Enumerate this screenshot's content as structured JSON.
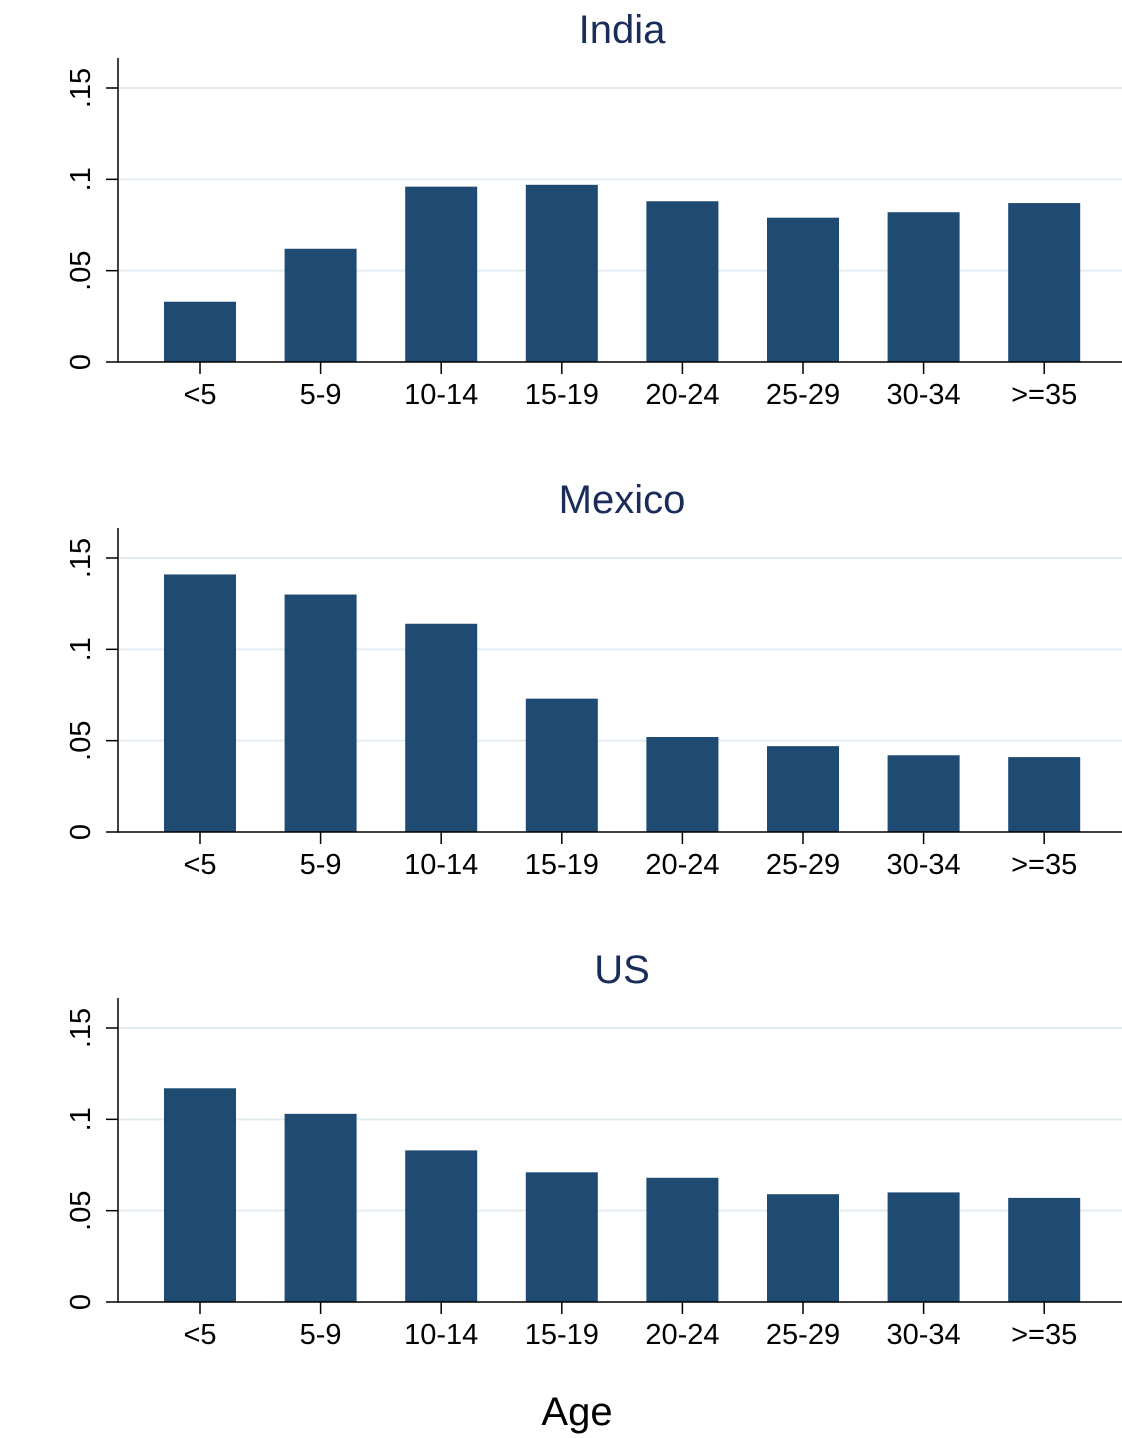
{
  "figure": {
    "xlabel": "Age"
  },
  "colors": {
    "bar": "#1f4a72",
    "title": "#1a2d5a",
    "axis": "#000000",
    "grid": "#e3ecf0",
    "background": "#ffffff"
  },
  "chart_data": [
    {
      "type": "bar",
      "title": "India",
      "categories": [
        "<5",
        "5-9",
        "10-14",
        "15-19",
        "20-24",
        "25-29",
        "30-34",
        ">=35"
      ],
      "values": [
        0.033,
        0.062,
        0.096,
        0.097,
        0.088,
        0.079,
        0.082,
        0.087
      ],
      "ylim": [
        0,
        0.165
      ],
      "yticks": [
        0,
        0.05,
        0.1,
        0.15
      ],
      "ytick_labels": [
        "0",
        ".05",
        ".1",
        ".15"
      ],
      "xlabel": "",
      "ylabel": "",
      "grid": true
    },
    {
      "type": "bar",
      "title": "Mexico",
      "categories": [
        "<5",
        "5-9",
        "10-14",
        "15-19",
        "20-24",
        "25-29",
        "30-34",
        ">=35"
      ],
      "values": [
        0.141,
        0.13,
        0.114,
        0.073,
        0.052,
        0.047,
        0.042,
        0.041
      ],
      "ylim": [
        0,
        0.165
      ],
      "yticks": [
        0,
        0.05,
        0.1,
        0.15
      ],
      "ytick_labels": [
        "0",
        ".05",
        ".1",
        ".15"
      ],
      "xlabel": "",
      "ylabel": "",
      "grid": true
    },
    {
      "type": "bar",
      "title": "US",
      "categories": [
        "<5",
        "5-9",
        "10-14",
        "15-19",
        "20-24",
        "25-29",
        "30-34",
        ">=35"
      ],
      "values": [
        0.117,
        0.103,
        0.083,
        0.071,
        0.068,
        0.059,
        0.06,
        0.057
      ],
      "ylim": [
        0,
        0.165
      ],
      "yticks": [
        0,
        0.05,
        0.1,
        0.15
      ],
      "ytick_labels": [
        "0",
        ".05",
        ".1",
        ".15"
      ],
      "xlabel": "",
      "ylabel": "",
      "grid": true
    }
  ]
}
